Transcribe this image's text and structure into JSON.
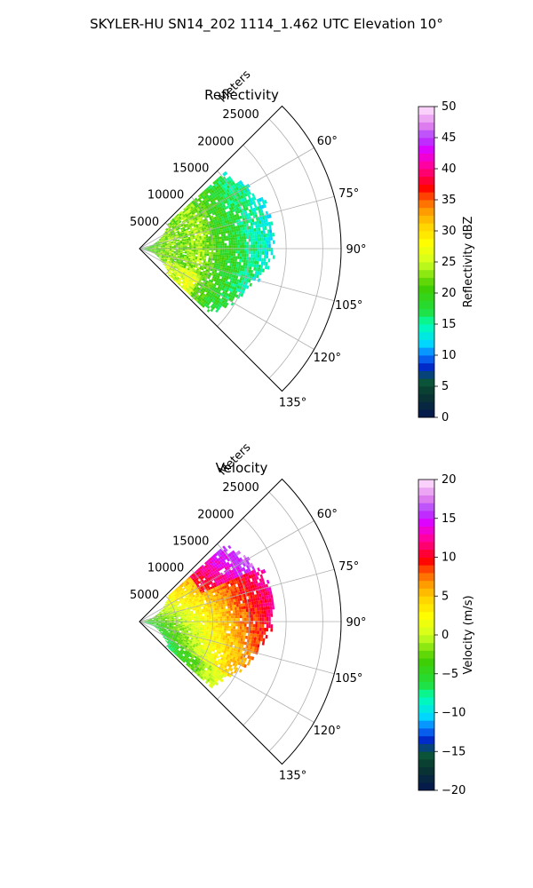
{
  "figure": {
    "title": "SKYLER-HU  SN14_202  1114_1.462 UTC Elevation 10°"
  },
  "chart_data": [
    {
      "type": "ppi-sector",
      "title": "Reflectivity",
      "radial_label": "Meters",
      "radial_ticks": [
        5000,
        10000,
        15000,
        20000,
        25000
      ],
      "radial_tick_labels": [
        "5000",
        "10000",
        "15000",
        "20000",
        "25000"
      ],
      "angle_ticks": [
        60,
        75,
        90,
        105,
        120,
        135
      ],
      "angle_tick_labels": [
        "60°",
        "75°",
        "90°",
        "105°",
        "120°",
        "135°"
      ],
      "azimuth_range_deg": [
        45,
        135
      ],
      "rmax_m": 27500,
      "grid": true,
      "colorbar": {
        "label": "Reflectivity dBZ",
        "range": [
          0,
          50
        ],
        "ticks": [
          0,
          5,
          10,
          15,
          20,
          25,
          30,
          35,
          40,
          45,
          50
        ],
        "tick_labels": [
          "0",
          "5",
          "10",
          "15",
          "20",
          "25",
          "30",
          "35",
          "40",
          "45",
          "50"
        ],
        "levels": 40,
        "stops": [
          [
            0.0,
            "#04154f"
          ],
          [
            0.08,
            "#0a3a2e"
          ],
          [
            0.12,
            "#0b5a3c"
          ],
          [
            0.16,
            "#0026c4"
          ],
          [
            0.2,
            "#0a78ff"
          ],
          [
            0.24,
            "#00dcff"
          ],
          [
            0.3,
            "#00ffb0"
          ],
          [
            0.34,
            "#20e040"
          ],
          [
            0.42,
            "#40cc00"
          ],
          [
            0.5,
            "#d0ff20"
          ],
          [
            0.56,
            "#ffff00"
          ],
          [
            0.62,
            "#ffd000"
          ],
          [
            0.66,
            "#ffa000"
          ],
          [
            0.7,
            "#ff6000"
          ],
          [
            0.74,
            "#ff0000"
          ],
          [
            0.78,
            "#ff0060"
          ],
          [
            0.82,
            "#ff00b0"
          ],
          [
            0.86,
            "#e000ff"
          ],
          [
            0.9,
            "#b040ff"
          ],
          [
            0.94,
            "#e080ee"
          ],
          [
            1.0,
            "#ffe6ff"
          ]
        ]
      },
      "field": {
        "extent_m": [
          0,
          18500
        ],
        "edge_az_deg": [
          48,
          132
        ],
        "profile": [
          [
            0,
            19
          ],
          [
            2000,
            21
          ],
          [
            4000,
            23
          ],
          [
            6000,
            22
          ],
          [
            8000,
            24
          ],
          [
            10000,
            21
          ],
          [
            13000,
            18
          ],
          [
            16000,
            15
          ],
          [
            18500,
            13
          ]
        ]
      }
    },
    {
      "type": "ppi-sector",
      "title": "Velocity",
      "radial_label": "Meters",
      "radial_ticks": [
        5000,
        10000,
        15000,
        20000,
        25000
      ],
      "radial_tick_labels": [
        "5000",
        "10000",
        "15000",
        "20000",
        "25000"
      ],
      "angle_ticks": [
        60,
        75,
        90,
        105,
        120,
        135
      ],
      "angle_tick_labels": [
        "60°",
        "75°",
        "90°",
        "105°",
        "120°",
        "135°"
      ],
      "azimuth_range_deg": [
        45,
        135
      ],
      "rmax_m": 27500,
      "grid": true,
      "colorbar": {
        "label": "Velocity (m/s)",
        "range": [
          -20,
          20
        ],
        "ticks": [
          -20,
          -15,
          -10,
          -5,
          0,
          5,
          10,
          15,
          20
        ],
        "tick_labels": [
          "−20",
          "−15",
          "−10",
          "−5",
          "0",
          "5",
          "10",
          "15",
          "20"
        ],
        "levels": 40,
        "stops": [
          [
            0.0,
            "#04154f"
          ],
          [
            0.08,
            "#0a3a2e"
          ],
          [
            0.12,
            "#0b5a3c"
          ],
          [
            0.16,
            "#0026c4"
          ],
          [
            0.2,
            "#0a78ff"
          ],
          [
            0.24,
            "#00dcff"
          ],
          [
            0.3,
            "#00ffb0"
          ],
          [
            0.34,
            "#20e040"
          ],
          [
            0.42,
            "#40cc00"
          ],
          [
            0.5,
            "#d0ff20"
          ],
          [
            0.56,
            "#ffff00"
          ],
          [
            0.62,
            "#ffd000"
          ],
          [
            0.66,
            "#ffa000"
          ],
          [
            0.7,
            "#ff6000"
          ],
          [
            0.74,
            "#ff0000"
          ],
          [
            0.78,
            "#ff0060"
          ],
          [
            0.82,
            "#ff00b0"
          ],
          [
            0.86,
            "#e000ff"
          ],
          [
            0.9,
            "#b040ff"
          ],
          [
            0.94,
            "#e080ee"
          ],
          [
            1.0,
            "#ffe6ff"
          ]
        ]
      },
      "field": {
        "extent_m": [
          0,
          18500
        ],
        "edge_az_deg": [
          48,
          132
        ],
        "velocity_model": "near-range green (~-5 m/s), yellow (~0 m/s) mid-range, red (~8-10 m/s) far range, magenta (~14 m/s) on the northern edge"
      }
    }
  ]
}
